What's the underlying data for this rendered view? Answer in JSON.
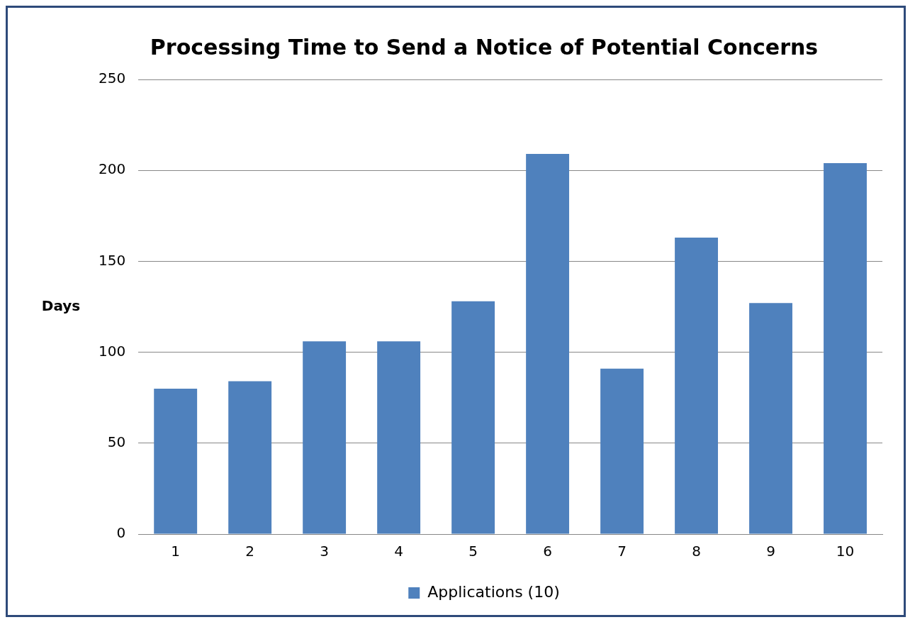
{
  "chart_data": {
    "type": "bar",
    "title": "Processing Time to Send a Notice of Potential Concerns",
    "ylabel": "Days",
    "categories": [
      "1",
      "2",
      "3",
      "4",
      "5",
      "6",
      "7",
      "8",
      "9",
      "10"
    ],
    "series": [
      {
        "name": "Applications (10)",
        "color": "#4f81bd",
        "values": [
          80,
          84,
          106,
          106,
          128,
          209,
          91,
          163,
          127,
          204
        ]
      }
    ],
    "ylim": [
      0,
      250
    ],
    "yticks": [
      0,
      50,
      100,
      150,
      200,
      250
    ],
    "grid": "y",
    "legend": "bottom"
  }
}
